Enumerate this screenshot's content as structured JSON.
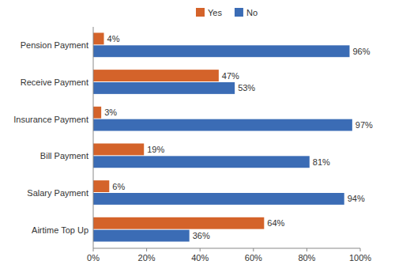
{
  "chart_data": {
    "type": "bar",
    "orientation": "horizontal",
    "categories": [
      "Pension Payment",
      "Receive Payment",
      "Insurance Payment",
      "Bill Payment",
      "Salary Payment",
      "Airtime Top Up"
    ],
    "series": [
      {
        "name": "Yes",
        "color": "#D4632A",
        "values": [
          4,
          47,
          3,
          19,
          6,
          64
        ],
        "value_labels": [
          "4%",
          "47%",
          "3%",
          "19%",
          "6%",
          "64%"
        ]
      },
      {
        "name": "No",
        "color": "#3B6CB5",
        "values": [
          96,
          53,
          97,
          81,
          94,
          36
        ],
        "value_labels": [
          "96%",
          "53%",
          "97%",
          "81%",
          "94%",
          "36%"
        ]
      }
    ],
    "xlim": [
      0,
      100
    ],
    "xticks": [
      {
        "value": 0,
        "label": "0%"
      },
      {
        "value": 20,
        "label": "20%"
      },
      {
        "value": 40,
        "label": "40%"
      },
      {
        "value": 60,
        "label": "60%"
      },
      {
        "value": 80,
        "label": "80%"
      },
      {
        "value": 100,
        "label": "100%"
      }
    ],
    "grid": false,
    "data_labels": true,
    "legend": "top"
  }
}
